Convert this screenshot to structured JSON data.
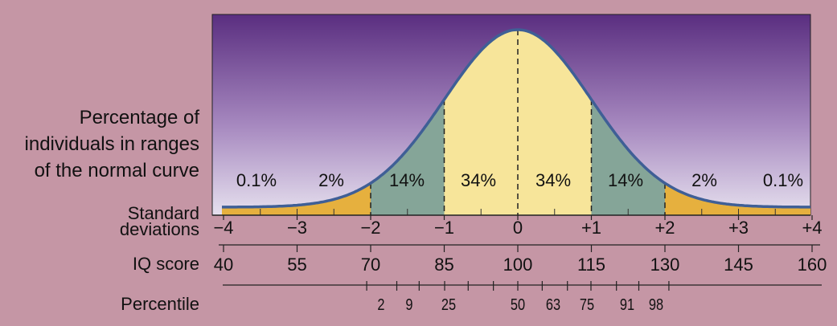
{
  "y_axis_label": [
    "Percentage of",
    "individuals in ranges",
    "of the normal curve"
  ],
  "row_labels": {
    "standard_deviations": [
      "Standard",
      "deviations"
    ],
    "iq_score": "IQ score",
    "percentile": "Percentile"
  },
  "region_percentages": [
    "0.1%",
    "2%",
    "14%",
    "34%",
    "34%",
    "14%",
    "2%",
    "0.1%"
  ],
  "sd_ticks": [
    "−4",
    "−3",
    "−2",
    "−1",
    "0",
    "+1",
    "+2",
    "+3",
    "+4"
  ],
  "iq_ticks": [
    "40",
    "55",
    "70",
    "85",
    "100",
    "115",
    "130",
    "145",
    "160"
  ],
  "percentile_labels": [
    "2",
    "9",
    "25",
    "50",
    "63",
    "75",
    "91",
    "98"
  ],
  "percentile_values": [
    2,
    5,
    9,
    16,
    25,
    37,
    50,
    63,
    75,
    84,
    91,
    95,
    98
  ],
  "colors": {
    "background": "#c596a5",
    "sky_top": "#5a2e80",
    "sky_bottom": "#e6e0ee",
    "center_fill": "#f7e59a",
    "mid_fill": "#85a598",
    "tail_fill": "#e6b03e",
    "curve": "#3f5f96"
  }
}
